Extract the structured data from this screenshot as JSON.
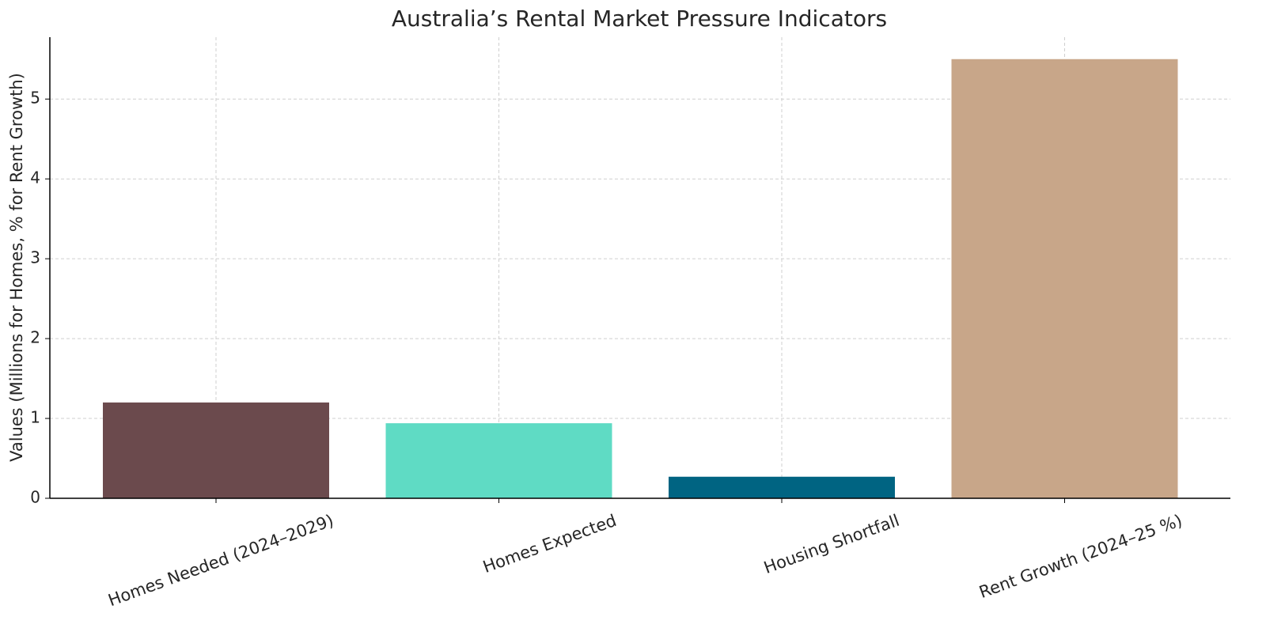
{
  "chart_data": {
    "type": "bar",
    "title": "Australia’s Rental Market Pressure Indicators",
    "y_label": "Values (Millions for Homes, % for Rent Growth)",
    "categories": [
      "Homes Needed (2024–2029)",
      "Homes Expected",
      "Housing Shortfall",
      "Rent Growth (2024–25 %)"
    ],
    "values": [
      1.2,
      0.94,
      0.27,
      5.5
    ],
    "colors": [
      "#6b4a4d",
      "#5fdbc4",
      "#006482",
      "#c8a689"
    ],
    "ylim": [
      0,
      5.775
    ],
    "yticks": [
      0,
      1,
      2,
      3,
      4,
      5
    ],
    "grid": true
  }
}
